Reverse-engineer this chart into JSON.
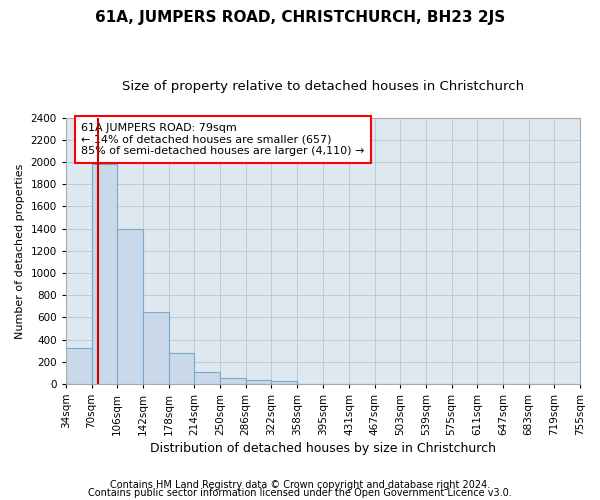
{
  "title": "61A, JUMPERS ROAD, CHRISTCHURCH, BH23 2JS",
  "subtitle": "Size of property relative to detached houses in Christchurch",
  "xlabel": "Distribution of detached houses by size in Christchurch",
  "ylabel": "Number of detached properties",
  "footer1": "Contains HM Land Registry data © Crown copyright and database right 2024.",
  "footer2": "Contains public sector information licensed under the Open Government Licence v3.0.",
  "annotation_line1": "61A JUMPERS ROAD: 79sqm",
  "annotation_line2": "← 14% of detached houses are smaller (657)",
  "annotation_line3": "85% of semi-detached houses are larger (4,110) →",
  "property_size": 79,
  "bin_edges": [
    34,
    70,
    106,
    142,
    178,
    214,
    250,
    286,
    322,
    358,
    395,
    431,
    467,
    503,
    539,
    575,
    611,
    647,
    683,
    719,
    755
  ],
  "bin_counts": [
    325,
    1980,
    1400,
    650,
    280,
    105,
    50,
    35,
    25,
    0,
    0,
    0,
    0,
    0,
    0,
    0,
    0,
    0,
    0,
    0
  ],
  "bar_color": "#c9d9ea",
  "bar_edgecolor": "#7aa8cc",
  "line_color": "#cc0000",
  "ylim": [
    0,
    2400
  ],
  "yticks": [
    0,
    200,
    400,
    600,
    800,
    1000,
    1200,
    1400,
    1600,
    1800,
    2000,
    2200,
    2400
  ],
  "ax_facecolor": "#dde8f0",
  "background_color": "#ffffff",
  "grid_color": "#b8ccd8",
  "title_fontsize": 11,
  "subtitle_fontsize": 9.5,
  "xlabel_fontsize": 9,
  "ylabel_fontsize": 8,
  "tick_fontsize": 7.5,
  "annotation_fontsize": 8,
  "footer_fontsize": 7
}
